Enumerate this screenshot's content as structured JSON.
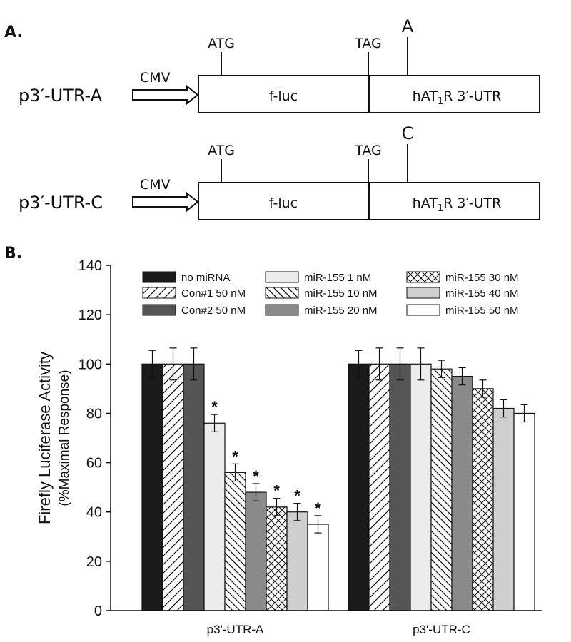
{
  "panel_a": {
    "label": "A.",
    "constructs": [
      {
        "name": "p3′-UTR-A",
        "promoter": "CMV",
        "start_codon": "ATG",
        "stop_codon": "TAG",
        "reporter": "f-luc",
        "utr_prefix": "hAT",
        "utr_sub": "1",
        "utr_suffix": "R 3′-UTR",
        "variant": "A"
      },
      {
        "name": "p3′-UTR-C",
        "promoter": "CMV",
        "start_codon": "ATG",
        "stop_codon": "TAG",
        "reporter": "f-luc",
        "utr_prefix": "hAT",
        "utr_sub": "1",
        "utr_suffix": "R 3′-UTR",
        "variant": "C"
      }
    ]
  },
  "panel_b": {
    "label": "B."
  },
  "chart_data": {
    "type": "bar",
    "ylabel": "Firefly Luciferase Activity",
    "ylabel_sub": "(%Maximal Response)",
    "xlabel": "",
    "ylim": [
      0,
      140
    ],
    "yticks": [
      0,
      20,
      40,
      60,
      80,
      100,
      120,
      140
    ],
    "categories": [
      "p3'-UTR-A",
      "p3'-UTR-C"
    ],
    "legend_columns": 3,
    "significance_marker": "*",
    "series": [
      {
        "name": "no miRNA",
        "values": [
          100,
          100
        ],
        "errors": [
          5.5,
          5.5
        ],
        "significant": [
          false,
          false
        ],
        "fill": "#1a1a1a",
        "pattern": "solid"
      },
      {
        "name": "Con#1 50 nM",
        "values": [
          100,
          100
        ],
        "errors": [
          6.5,
          6.5
        ],
        "significant": [
          false,
          false
        ],
        "fill": "#ffffff",
        "pattern": "hatch-forward"
      },
      {
        "name": "Con#2 50 nM",
        "values": [
          100,
          100
        ],
        "errors": [
          6.5,
          6.5
        ],
        "significant": [
          false,
          false
        ],
        "fill": "#555555",
        "pattern": "solid"
      },
      {
        "name": "miR-155 1 nM",
        "values": [
          76,
          100
        ],
        "errors": [
          3.5,
          6.5
        ],
        "significant": [
          true,
          false
        ],
        "fill": "#ececec",
        "pattern": "solid"
      },
      {
        "name": "miR-155 10 nM",
        "values": [
          56,
          98
        ],
        "errors": [
          3.5,
          3.5
        ],
        "significant": [
          true,
          false
        ],
        "fill": "#ffffff",
        "pattern": "hatch-back"
      },
      {
        "name": "miR-155 20 nM",
        "values": [
          48,
          95
        ],
        "errors": [
          3.5,
          3.5
        ],
        "significant": [
          true,
          false
        ],
        "fill": "#8a8a8a",
        "pattern": "solid"
      },
      {
        "name": "miR-155 30 nM",
        "values": [
          42,
          90
        ],
        "errors": [
          3.5,
          3.5
        ],
        "significant": [
          true,
          false
        ],
        "fill": "#ffffff",
        "pattern": "crosshatch"
      },
      {
        "name": "miR-155 40 nM",
        "values": [
          40,
          82
        ],
        "errors": [
          3.5,
          3.5
        ],
        "significant": [
          true,
          false
        ],
        "fill": "#cfcfcf",
        "pattern": "solid"
      },
      {
        "name": "miR-155 50 nM",
        "values": [
          35,
          80
        ],
        "errors": [
          3.5,
          3.5
        ],
        "significant": [
          true,
          false
        ],
        "fill": "#ffffff",
        "pattern": "solid"
      }
    ]
  }
}
